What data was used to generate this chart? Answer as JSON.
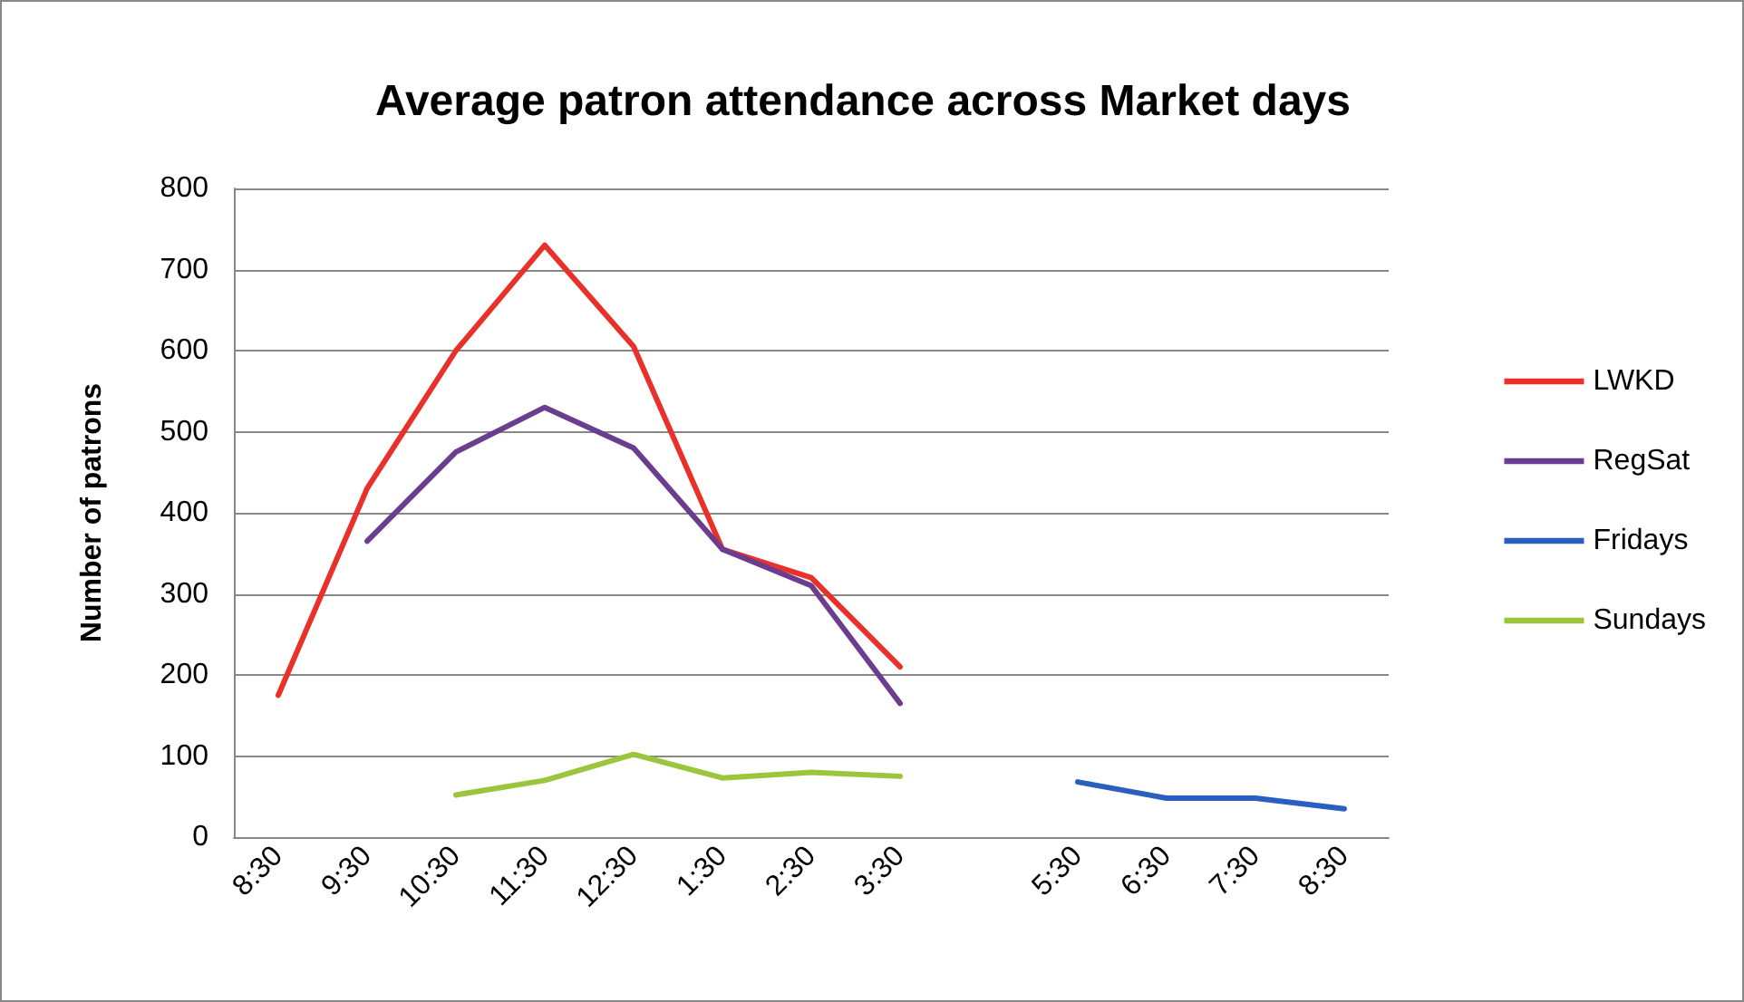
{
  "chart_data": {
    "type": "line",
    "title": "Average patron attendance across Market days",
    "ylabel": "Number of patrons",
    "categories": [
      "8:30",
      "9:30",
      "10:30",
      "11:30",
      "12:30",
      "1:30",
      "2:30",
      "3:30",
      null,
      "5:30",
      "6:30",
      "7:30",
      "8:30"
    ],
    "series": [
      {
        "name": "LWKD",
        "color": "#e8312a",
        "values": [
          175,
          430,
          600,
          730,
          605,
          355,
          320,
          210,
          null,
          null,
          null,
          null,
          null
        ]
      },
      {
        "name": "RegSat",
        "color": "#6a3d8f",
        "values": [
          null,
          365,
          475,
          530,
          480,
          355,
          310,
          165,
          null,
          null,
          null,
          null,
          null
        ]
      },
      {
        "name": "Fridays",
        "color": "#2a5fbf",
        "values": [
          null,
          null,
          null,
          null,
          null,
          null,
          null,
          null,
          null,
          68,
          48,
          48,
          35
        ]
      },
      {
        "name": "Sundays",
        "color": "#9bc53d",
        "values": [
          null,
          null,
          52,
          70,
          102,
          73,
          80,
          75,
          null,
          null,
          null,
          null,
          null
        ]
      }
    ],
    "ylim": [
      0,
      800
    ],
    "yticks": [
      0,
      100,
      200,
      300,
      400,
      500,
      600,
      700,
      800
    ],
    "grid": "y",
    "legend": "right",
    "marker": "none",
    "line_style": "solid"
  }
}
